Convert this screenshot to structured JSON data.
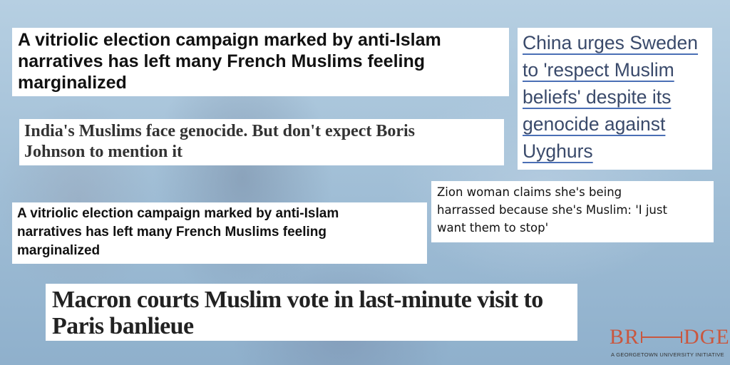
{
  "headlines": {
    "h1": {
      "lines": [
        "A vitriolic election campaign marked by anti-Islam",
        "narratives has left many French Muslims feeling",
        "marginalized"
      ]
    },
    "h2": {
      "lines": [
        "China urges Sweden",
        "to 'respect Muslim",
        "beliefs' despite its",
        "genocide against",
        "Uyghurs"
      ]
    },
    "h3": {
      "lines": [
        "India's Muslims face genocide. But don't expect Boris",
        "Johnson to mention it"
      ]
    },
    "h4": {
      "lines": [
        "Zion woman claims she's being",
        "harrassed because she's Muslim: 'I just",
        "want them to stop'"
      ]
    },
    "h5": {
      "lines": [
        "A vitriolic election campaign marked by anti-Islam",
        "narratives has left many French Muslims feeling",
        "marginalized"
      ]
    },
    "h6": {
      "lines": [
        "Macron courts Muslim vote in last-minute visit to",
        "Paris banlieue"
      ]
    }
  },
  "logo": {
    "left": "BR",
    "right": "DGE",
    "tagline": "A GEORGETOWN UNIVERSITY INITIATIVE"
  },
  "colors": {
    "background": "#a9c4d9",
    "link_underline": "#4a6fb5",
    "logo": "#c9573f"
  }
}
